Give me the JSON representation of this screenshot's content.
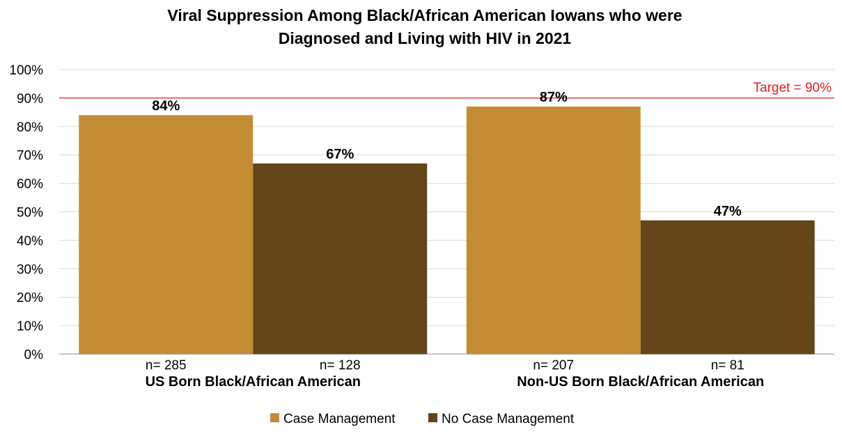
{
  "chart_data": {
    "type": "bar",
    "title_line1": "Viral Suppression Among Black/African American Iowans who were",
    "title_line2": "Diagnosed and Living with HIV in 2021",
    "categories": [
      "US Born Black/African American",
      "Non-US Born Black/African American"
    ],
    "series": [
      {
        "name": "Case Management",
        "color": "#c48d35",
        "values": [
          84,
          87
        ],
        "value_labels": [
          "84%",
          "87%"
        ],
        "n_labels": [
          "n= 285",
          "n= 207"
        ]
      },
      {
        "name": "No Case Management",
        "color": "#65461b",
        "values": [
          67,
          47
        ],
        "value_labels": [
          "67%",
          "47%"
        ],
        "n_labels": [
          "n= 128",
          "n= 81"
        ]
      }
    ],
    "ylim": [
      0,
      100
    ],
    "yticks": [
      "0%",
      "10%",
      "20%",
      "30%",
      "40%",
      "50%",
      "60%",
      "70%",
      "80%",
      "90%",
      "100%"
    ],
    "grid": true,
    "target": {
      "value": 90,
      "label": "Target = 90%",
      "color": "#e31b23"
    },
    "legend_position": "bottom"
  }
}
